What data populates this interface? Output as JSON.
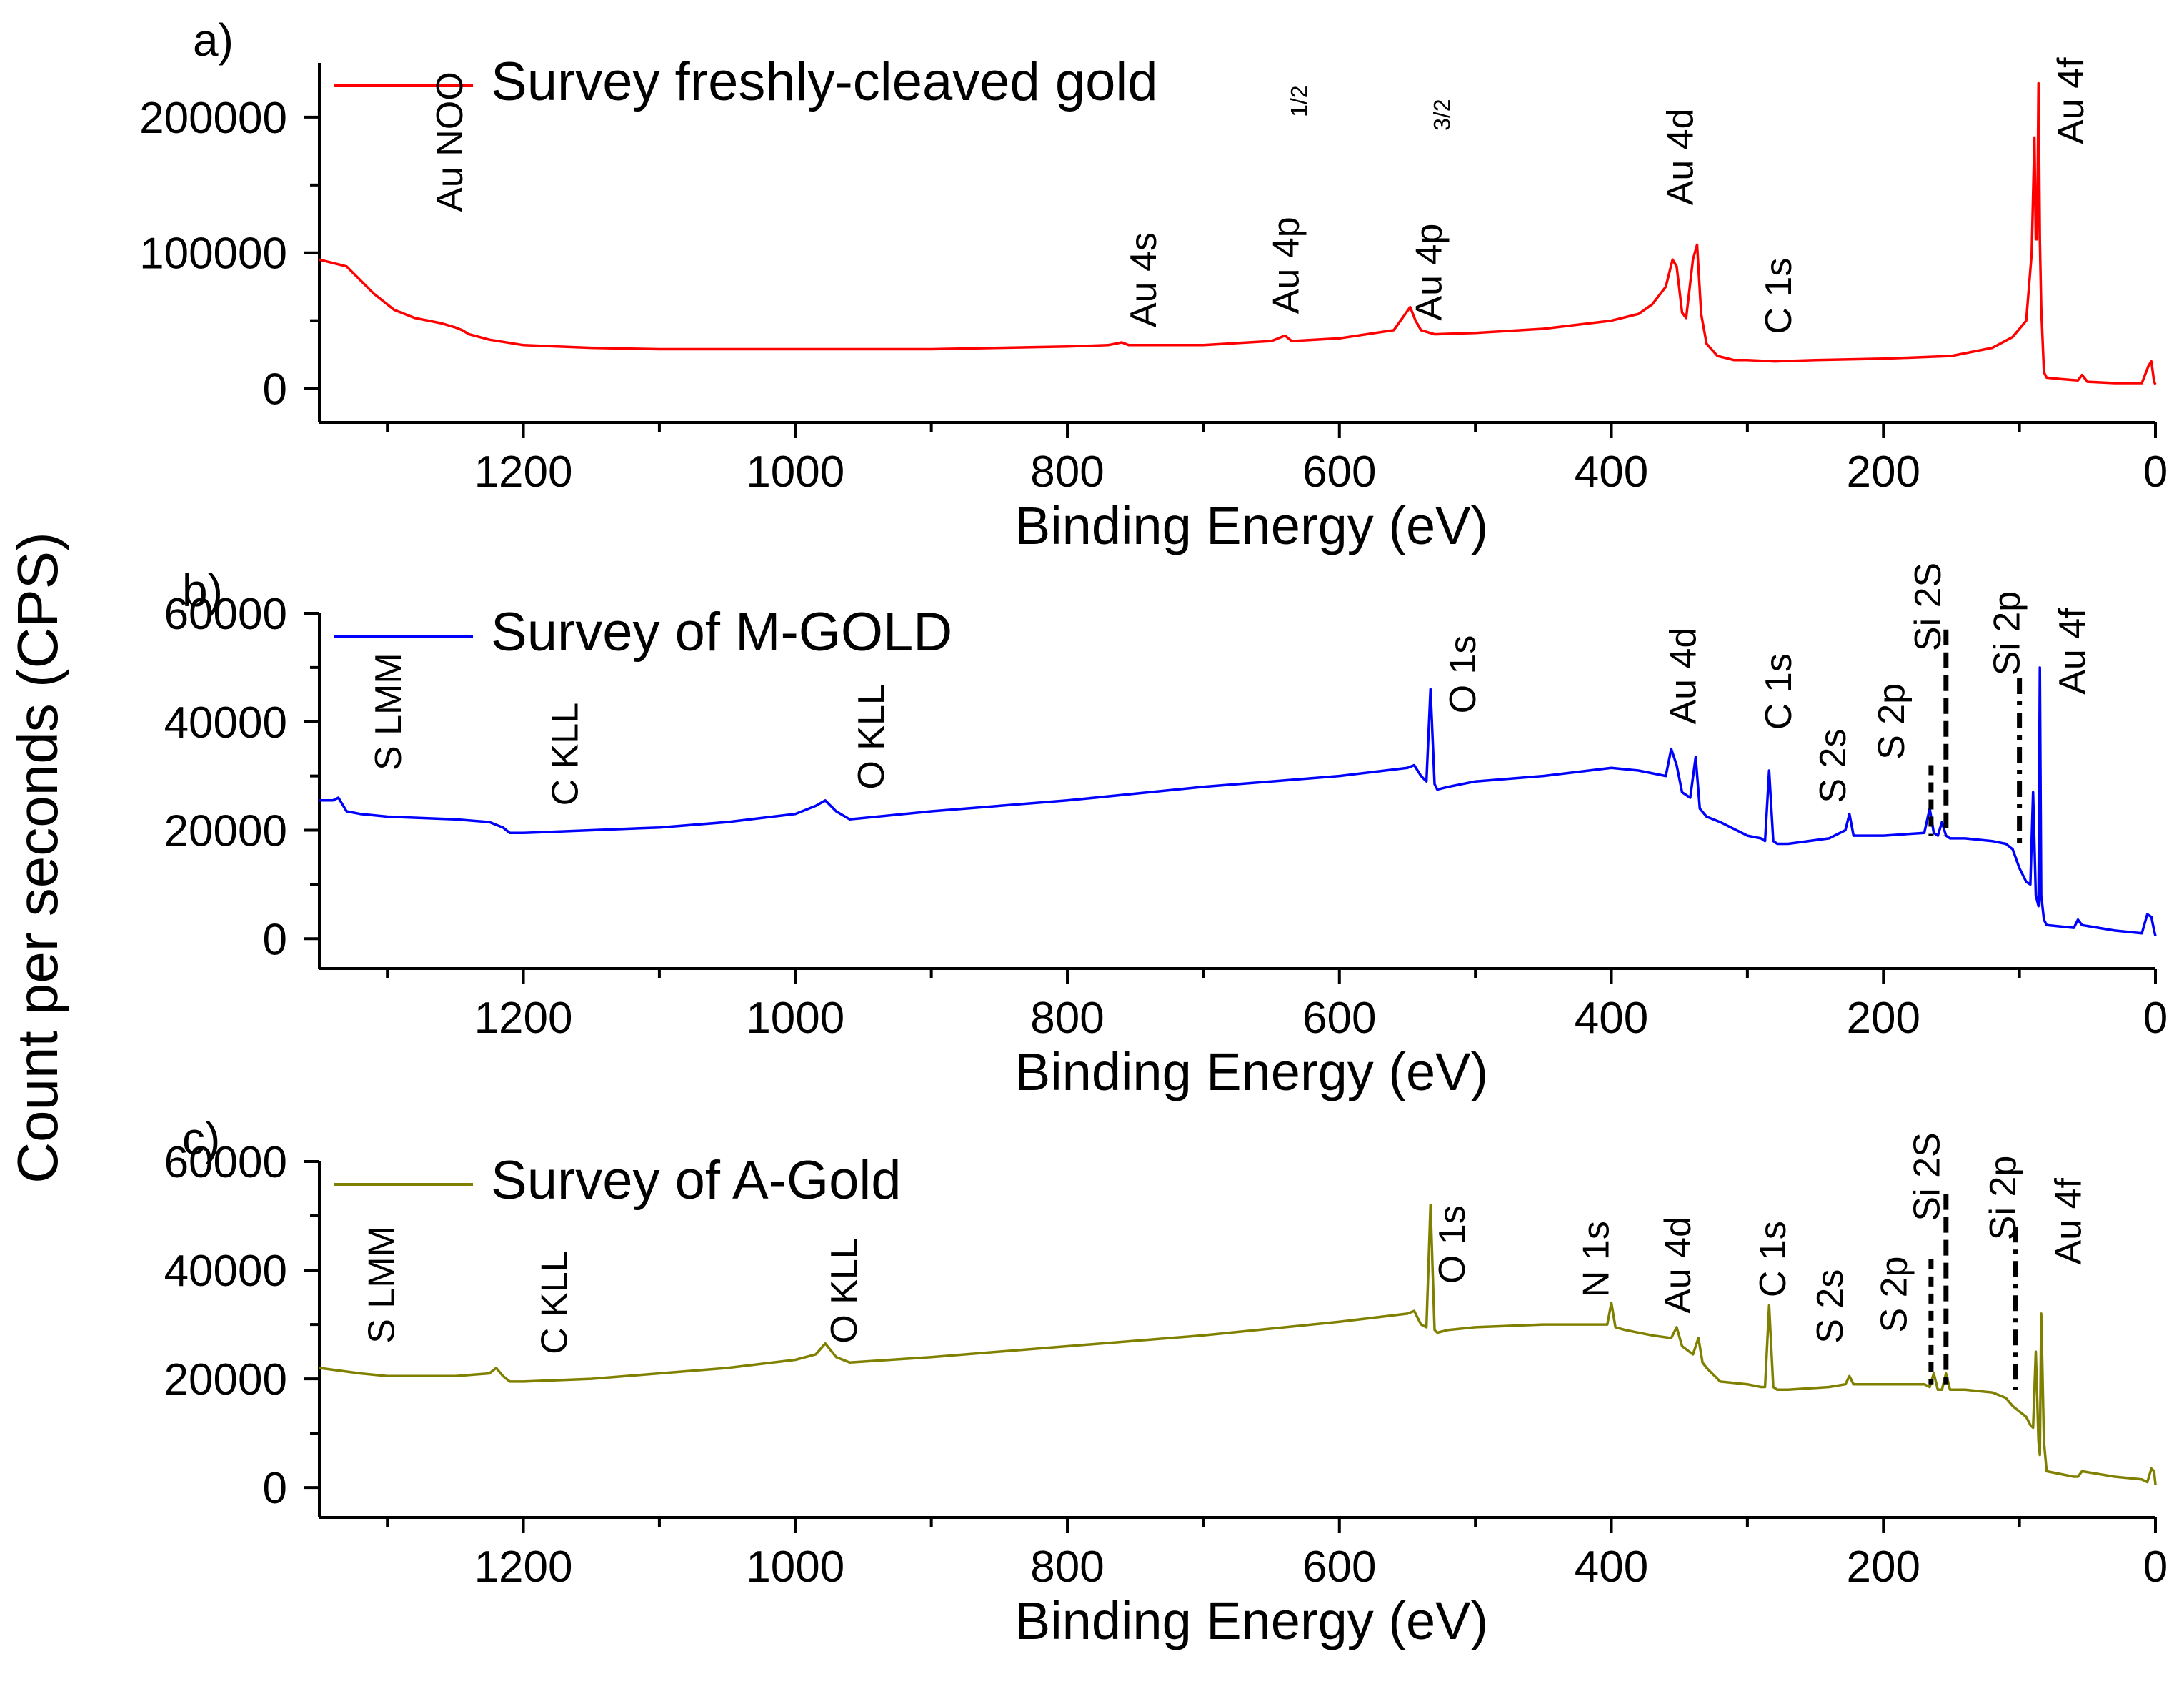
{
  "figure": {
    "ylabel": "Count per seconds (CPS)"
  },
  "colors": {
    "a": "#ff0000",
    "b": "#0000ff",
    "c": "#808000"
  },
  "chart_data": [
    {
      "type": "line",
      "panel": "a)",
      "xlabel": "Binding Energy (eV)",
      "xlim": [
        1350,
        0
      ],
      "ylim": [
        -25000,
        240000
      ],
      "xticks": [
        1200,
        1000,
        800,
        600,
        400,
        200,
        0
      ],
      "yticks": [
        0,
        100000,
        200000
      ],
      "legend_placement": "top-left",
      "series": [
        {
          "name": "Survey freshly-cleaved gold",
          "x": [
            1350,
            1330,
            1310,
            1295,
            1280,
            1260,
            1250,
            1245,
            1240,
            1225,
            1200,
            1150,
            1100,
            1050,
            1000,
            950,
            900,
            850,
            800,
            770,
            760,
            755,
            700,
            650,
            640,
            635,
            600,
            560,
            548,
            544,
            540,
            530,
            500,
            450,
            400,
            380,
            370,
            360,
            355,
            352,
            348,
            345,
            340,
            337,
            334,
            330,
            322,
            310,
            300,
            280,
            250,
            200,
            150,
            120,
            105,
            95,
            91,
            89,
            88,
            87,
            86,
            85,
            84,
            82,
            80,
            70,
            57,
            54,
            50,
            30,
            10,
            5,
            3,
            1,
            0
          ],
          "y": [
            95000,
            90000,
            70000,
            58000,
            52000,
            48000,
            45000,
            43000,
            40000,
            36000,
            32000,
            30000,
            29000,
            29000,
            29000,
            29000,
            29000,
            30000,
            31000,
            32000,
            34000,
            32000,
            32000,
            35000,
            39000,
            35000,
            37000,
            43000,
            60000,
            50000,
            43000,
            40000,
            41000,
            44000,
            50000,
            55000,
            62000,
            75000,
            95000,
            90000,
            56000,
            52000,
            95000,
            106000,
            55000,
            33000,
            24000,
            21000,
            21000,
            20000,
            21000,
            22000,
            24000,
            30000,
            38000,
            50000,
            100000,
            185000,
            110000,
            110000,
            225000,
            110000,
            60000,
            12000,
            8000,
            7000,
            6000,
            10000,
            5000,
            4000,
            4000,
            17000,
            20000,
            5000,
            3000
          ]
        }
      ],
      "annotations": [
        "Au NOO",
        "Au 4s",
        "Au 4p",
        "1/2",
        "Au 4p",
        "3/2",
        "Au 4d",
        "C 1s",
        "Au 4f"
      ]
    },
    {
      "type": "line",
      "panel": "b)",
      "xlabel": "Binding Energy (eV)",
      "xlim": [
        1350,
        0
      ],
      "ylim": [
        -5500,
        60000
      ],
      "xticks": [
        1200,
        1000,
        800,
        600,
        400,
        200,
        0
      ],
      "yticks": [
        0,
        20000,
        40000,
        60000
      ],
      "legend_placement": "top-left",
      "series": [
        {
          "name": "Survey of M-GOLD",
          "x": [
            1350,
            1340,
            1336,
            1330,
            1320,
            1300,
            1250,
            1225,
            1215,
            1210,
            1200,
            1150,
            1100,
            1050,
            1000,
            985,
            978,
            970,
            960,
            900,
            800,
            700,
            600,
            550,
            545,
            540,
            536,
            533,
            530,
            528,
            520,
            500,
            450,
            400,
            380,
            360,
            356,
            352,
            348,
            342,
            338,
            335,
            330,
            320,
            300,
            290,
            287,
            284,
            281,
            278,
            270,
            240,
            228,
            225,
            222,
            200,
            170,
            166,
            163,
            160,
            157,
            154,
            151,
            140,
            120,
            110,
            105,
            100,
            95,
            92,
            90,
            88,
            86,
            85,
            84,
            82,
            80,
            60,
            57,
            54,
            30,
            10,
            6,
            3,
            1,
            0
          ],
          "y": [
            25500,
            25500,
            26000,
            23500,
            23000,
            22500,
            22000,
            21500,
            20500,
            19500,
            19500,
            20000,
            20500,
            21500,
            23000,
            24500,
            25500,
            23500,
            22000,
            23500,
            25500,
            28000,
            30000,
            31500,
            32000,
            30000,
            29000,
            46000,
            28500,
            27500,
            28000,
            29000,
            30000,
            31500,
            31000,
            30000,
            35000,
            32000,
            27000,
            26000,
            33500,
            24000,
            22500,
            21500,
            19000,
            18500,
            18000,
            31000,
            18000,
            17500,
            17500,
            18500,
            20000,
            23000,
            19000,
            19000,
            19500,
            24000,
            19500,
            19000,
            21500,
            19000,
            18500,
            18500,
            18000,
            17500,
            16500,
            13000,
            10500,
            10000,
            27000,
            8000,
            6000,
            50000,
            8000,
            3500,
            2500,
            2000,
            3500,
            2500,
            1500,
            1000,
            4500,
            4000,
            1500,
            500
          ]
        }
      ],
      "annotations": [
        "S LMM",
        "C KLL",
        "O KLL",
        "O 1s",
        "Au 4d",
        "C 1s",
        "S 2s",
        "S 2p",
        "Si 2S",
        "Si 2p",
        "Au 4f"
      ]
    },
    {
      "type": "line",
      "panel": "c)",
      "xlabel": "Binding Energy (eV)",
      "xlim": [
        1350,
        0
      ],
      "ylim": [
        -5500,
        60000
      ],
      "xticks": [
        1200,
        1000,
        800,
        600,
        400,
        200,
        0
      ],
      "yticks": [
        0,
        20000,
        40000,
        60000
      ],
      "legend_placement": "top-left",
      "series": [
        {
          "name": "Survey of A-Gold",
          "x": [
            1350,
            1320,
            1300,
            1250,
            1225,
            1220,
            1215,
            1210,
            1200,
            1150,
            1100,
            1050,
            1000,
            985,
            978,
            970,
            960,
            900,
            800,
            700,
            600,
            550,
            545,
            540,
            536,
            533,
            530,
            528,
            520,
            500,
            450,
            410,
            403,
            400,
            397,
            390,
            370,
            356,
            352,
            348,
            340,
            336,
            333,
            330,
            320,
            300,
            290,
            287,
            284,
            281,
            278,
            270,
            240,
            228,
            225,
            222,
            200,
            170,
            166,
            163,
            160,
            157,
            154,
            151,
            140,
            120,
            110,
            105,
            100,
            95,
            92,
            90,
            88,
            86,
            85,
            84,
            82,
            80,
            60,
            57,
            54,
            30,
            10,
            6,
            3,
            1,
            0
          ],
          "y": [
            22000,
            21000,
            20500,
            20500,
            21000,
            22000,
            20500,
            19500,
            19500,
            20000,
            21000,
            22000,
            23500,
            24500,
            26500,
            24000,
            23000,
            24000,
            26000,
            28000,
            30500,
            32000,
            32500,
            30000,
            29500,
            52000,
            29000,
            28500,
            29000,
            29500,
            30000,
            30000,
            30000,
            34000,
            29500,
            29000,
            28000,
            27500,
            29500,
            26000,
            24500,
            27500,
            23000,
            22000,
            19500,
            19000,
            18500,
            18500,
            33500,
            18500,
            18000,
            18000,
            18500,
            19000,
            20500,
            19000,
            19000,
            19000,
            18500,
            21000,
            18000,
            18000,
            21000,
            18000,
            18000,
            17500,
            16500,
            15000,
            14000,
            13000,
            11500,
            11000,
            25000,
            8500,
            6000,
            32000,
            8500,
            3000,
            2000,
            2000,
            3000,
            2000,
            1500,
            1000,
            3500,
            3000,
            500
          ]
        }
      ],
      "annotations": [
        "S LMM",
        "C KLL",
        "O KLL",
        "O 1s",
        "N 1s",
        "Au 4d",
        "C 1s",
        "S 2s",
        "S 2p",
        "Si 2S",
        "Si 2p",
        "Au 4f"
      ]
    }
  ]
}
